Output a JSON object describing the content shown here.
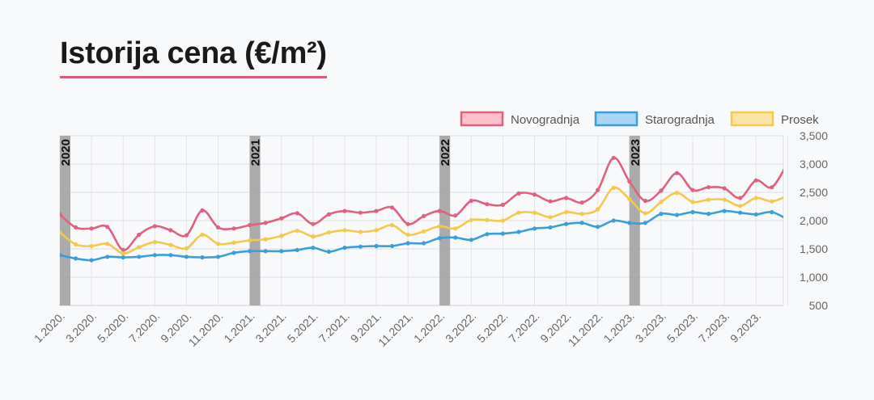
{
  "page": {
    "title": "Istorija cena (€/m²)"
  },
  "chart_data": {
    "type": "line",
    "title": "Istorija cena (€/m²)",
    "x_labels": [
      "1.2020.",
      "3.2020.",
      "5.2020.",
      "7.2020.",
      "9.2020.",
      "11.2020.",
      "1.2021.",
      "3.2021.",
      "5.2021.",
      "7.2021.",
      "9.2021.",
      "11.2021.",
      "1.2022.",
      "3.2022.",
      "5.2022.",
      "7.2022.",
      "9.2022.",
      "11.2022.",
      "1.2023.",
      "3.2023.",
      "5.2023.",
      "7.2023.",
      "9.2023."
    ],
    "ylim": [
      500,
      3500
    ],
    "y_ticks": [
      "500",
      "1,000",
      "1,500",
      "2,000",
      "2,500",
      "3,000",
      "3,500"
    ],
    "year_markers": [
      "2020",
      "2021",
      "2022",
      "2023"
    ],
    "legend_position": "top-right",
    "grid": true,
    "series": [
      {
        "name": "Novogradnja",
        "color": "#e0607e",
        "fill": "#ffc0cc",
        "values": [
          2110,
          1880,
          1860,
          1890,
          1480,
          1750,
          1900,
          1830,
          1740,
          2180,
          1880,
          1860,
          1920,
          1960,
          2040,
          2130,
          1940,
          2110,
          2170,
          2140,
          2170,
          2230,
          1940,
          2080,
          2170,
          2090,
          2350,
          2290,
          2280,
          2480,
          2460,
          2340,
          2400,
          2320,
          2540,
          3110,
          2690,
          2350,
          2530,
          2840,
          2540,
          2590,
          2570,
          2400,
          2710,
          2590,
          3020
        ]
      },
      {
        "name": "Starogradnja",
        "color": "#3a9fd8",
        "fill": "#a8d6f5",
        "values": [
          1390,
          1330,
          1300,
          1360,
          1350,
          1360,
          1390,
          1390,
          1360,
          1350,
          1360,
          1430,
          1460,
          1460,
          1460,
          1480,
          1520,
          1450,
          1520,
          1540,
          1550,
          1550,
          1600,
          1600,
          1690,
          1700,
          1660,
          1760,
          1770,
          1800,
          1860,
          1880,
          1940,
          1960,
          1890,
          2000,
          1960,
          1960,
          2120,
          2100,
          2150,
          2120,
          2170,
          2140,
          2110,
          2150,
          2020
        ]
      },
      {
        "name": "Prosek",
        "color": "#f4c84a",
        "fill": "#fbe5a6",
        "values": [
          1790,
          1580,
          1550,
          1590,
          1420,
          1530,
          1620,
          1570,
          1510,
          1750,
          1590,
          1610,
          1650,
          1670,
          1730,
          1820,
          1720,
          1790,
          1830,
          1800,
          1830,
          1920,
          1750,
          1810,
          1900,
          1860,
          2010,
          2010,
          2000,
          2140,
          2140,
          2060,
          2150,
          2120,
          2200,
          2580,
          2380,
          2130,
          2330,
          2490,
          2330,
          2370,
          2370,
          2260,
          2400,
          2340,
          2440
        ]
      }
    ]
  }
}
